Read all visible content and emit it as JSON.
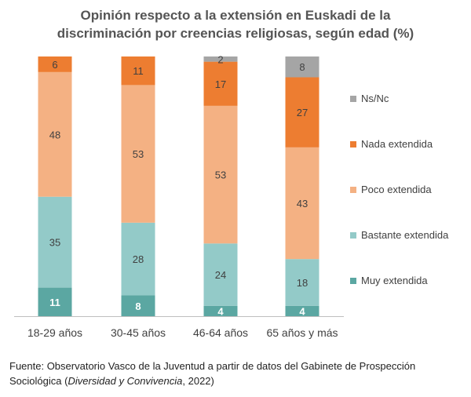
{
  "chart_data": {
    "type": "bar",
    "stacked": true,
    "title_lines": [
      "Opinión respecto a la extensión en Euskadi de la",
      "discriminación por creencias religiosas, según edad (%)"
    ],
    "categories": [
      "18-29 años",
      "30-45 años",
      "46-64 años",
      "65 años y más"
    ],
    "series": [
      {
        "name": "Muy extendida",
        "color": "#5ba7a2",
        "label_color": "#ffffff",
        "values": [
          11,
          8,
          4,
          4
        ]
      },
      {
        "name": "Bastante extendida",
        "color": "#93cac8",
        "label_color": "#404040",
        "values": [
          35,
          28,
          24,
          18
        ]
      },
      {
        "name": "Poco extendida",
        "color": "#f4b183",
        "label_color": "#404040",
        "values": [
          48,
          53,
          53,
          43
        ]
      },
      {
        "name": "Nada extendida",
        "color": "#ed7d31",
        "label_color": "#404040",
        "values": [
          6,
          11,
          17,
          27
        ]
      },
      {
        "name": "Ns/Nc",
        "color": "#a5a5a5",
        "label_color": "#404040",
        "values": [
          0,
          0,
          2,
          8
        ]
      }
    ],
    "ylim": [
      0,
      100
    ],
    "grid": false,
    "legend_position": "right"
  },
  "source": {
    "prefix": "Fuente: Observatorio Vasco de la Juventud a partir de datos del Gabinete de Prospección Sociológica (",
    "italic": "Diversidad y Convivencia",
    "suffix": ", 2022)"
  }
}
